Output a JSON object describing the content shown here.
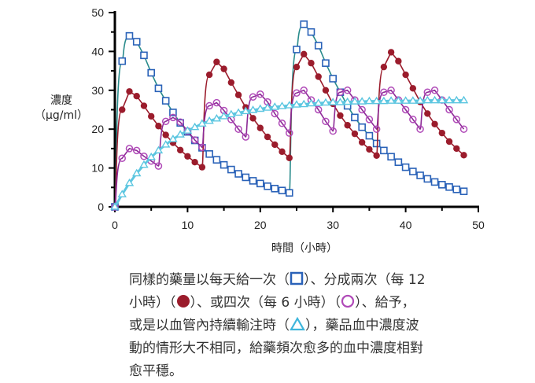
{
  "chart_data": {
    "type": "line",
    "xlabel": "時間（小時）",
    "ylabel": [
      "濃度",
      "（μg/ml）"
    ],
    "xlim": [
      0,
      50
    ],
    "ylim": [
      0,
      50
    ],
    "xticks": [
      0,
      10,
      20,
      30,
      40,
      50
    ],
    "yticks": [
      0,
      10,
      20,
      30,
      40,
      50
    ],
    "grid": false,
    "x": [
      0,
      1,
      2,
      3,
      4,
      5,
      6,
      7,
      8,
      9,
      10,
      11,
      12,
      13,
      14,
      15,
      16,
      17,
      18,
      19,
      20,
      21,
      22,
      23,
      24,
      25,
      26,
      27,
      28,
      29,
      30,
      31,
      32,
      33,
      34,
      35,
      36,
      37,
      38,
      39,
      40,
      41,
      42,
      43,
      44,
      45,
      46,
      47,
      48
    ],
    "series": [
      {
        "name": "once-daily",
        "marker": "square",
        "color": "#2a62b8",
        "line_color": "#2a8c8c",
        "values": [
          0,
          37.5,
          44,
          42.5,
          39,
          34.5,
          30.5,
          27.3,
          24.3,
          21.6,
          19.3,
          17.1,
          15.2,
          13.6,
          12.1,
          10.8,
          9.6,
          8.5,
          7.6,
          6.7,
          6.0,
          5.3,
          4.7,
          4.2,
          3.6,
          40.5,
          47,
          45,
          41.5,
          37,
          33,
          29.5,
          26,
          23,
          20.5,
          18.3,
          16.3,
          14.5,
          12.9,
          11.5,
          10.2,
          9.1,
          8.1,
          7.2,
          6.4,
          5.7,
          5.1,
          4.5,
          4.0
        ]
      },
      {
        "name": "every-12h",
        "marker": "filled-circle",
        "color": "#9b1c2c",
        "line_color": "#9b1c2c",
        "values": [
          0,
          25,
          29.7,
          28.5,
          26,
          23.3,
          20.8,
          18.5,
          16.5,
          14.6,
          13,
          11.5,
          10.2,
          34,
          37.3,
          35.5,
          32,
          28.8,
          25.6,
          22.8,
          20.3,
          18,
          16,
          14.2,
          12.6,
          36,
          39.3,
          37,
          33.5,
          30,
          26.5,
          23.5,
          21,
          18.8,
          16.6,
          14.8,
          13.2,
          36,
          39.8,
          37.5,
          34,
          30.5,
          27,
          24,
          21.3,
          19,
          16.8,
          15,
          13.3
        ]
      },
      {
        "name": "every-6h",
        "marker": "open-circle",
        "color": "#b04ab8",
        "line_color": "#8c2a96",
        "values": [
          0,
          12.5,
          15,
          14.5,
          13,
          11.8,
          10.5,
          22,
          23,
          21.8,
          19.5,
          17.2,
          15.3,
          26,
          26.8,
          24.8,
          22.5,
          20,
          18,
          28.3,
          29,
          27,
          24,
          21.5,
          19,
          29.3,
          30,
          27.5,
          25,
          22,
          19.5,
          29.5,
          30,
          27.5,
          25,
          22.5,
          20,
          29.5,
          30,
          27.5,
          25,
          22.5,
          20,
          29.5,
          30,
          27.5,
          25,
          22.5,
          20
        ]
      },
      {
        "name": "continuous-infusion",
        "marker": "triangle",
        "color": "#5cc6e0",
        "line_color": "#5cc6e0",
        "values": [
          0,
          3.2,
          6.1,
          8.6,
          10.8,
          12.8,
          14.5,
          16.0,
          17.4,
          18.6,
          19.6,
          20.5,
          21.4,
          22.1,
          22.7,
          23.3,
          23.8,
          24.2,
          24.6,
          24.9,
          25.2,
          25.5,
          25.7,
          25.9,
          26.1,
          26.3,
          26.4,
          26.6,
          26.7,
          26.8,
          26.9,
          26.9,
          27.0,
          27.1,
          27.1,
          27.2,
          27.2,
          27.2,
          27.3,
          27.3,
          27.3,
          27.3,
          27.3,
          27.4,
          27.4,
          27.4,
          27.4,
          27.4,
          27.4
        ]
      }
    ]
  },
  "caption": {
    "line1_a": "同樣的藥量以每天給一次（",
    "line1_b": "）、分成兩次（每 12",
    "line2_a": "小時）（",
    "line2_b": "）、或四次（每 6 小時）（",
    "line2_c": "）、給予，",
    "line3_a": "或是以血管內持續輸注時（",
    "line3_b": "），藥品血中濃度波",
    "line4": "動的情形大不相同，給藥頻次愈多的血中濃度相對",
    "line5": "愈平穩。"
  }
}
